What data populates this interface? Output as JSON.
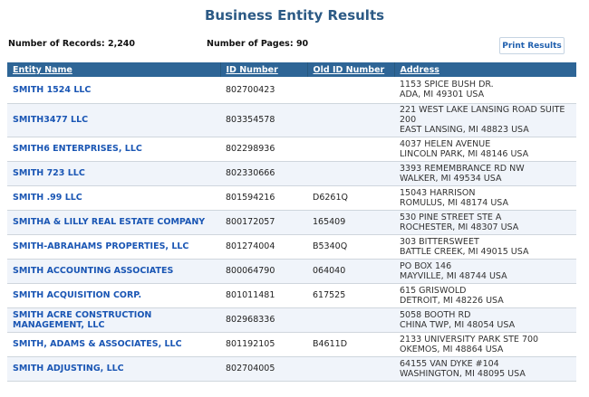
{
  "page": {
    "title": "Business Entity Results"
  },
  "summary": {
    "records_label": "Number of Records: 2,240",
    "pages_label": "Number of Pages: 90",
    "print_label": "Print Results"
  },
  "table": {
    "columns": [
      "Entity Name",
      "ID Number",
      "Old ID Number",
      "Address"
    ],
    "rows": [
      {
        "name": "SMITH 1524 LLC",
        "id": "802700423",
        "old_id": "",
        "address": [
          "1153 SPICE BUSH DR.",
          "ADA, MI 49301 USA"
        ]
      },
      {
        "name": "SMITH3477 LLC",
        "id": "803354578",
        "old_id": "",
        "address": [
          "221 WEST LAKE LANSING ROAD SUITE 200",
          "EAST LANSING, MI 48823 USA"
        ]
      },
      {
        "name": "SMITH6 ENTERPRISES, LLC",
        "id": "802298936",
        "old_id": "",
        "address": [
          "4037 HELEN AVENUE",
          "LINCOLN PARK, MI 48146 USA"
        ]
      },
      {
        "name": "SMITH 723 LLC",
        "id": "802330666",
        "old_id": "",
        "address": [
          "3393 REMEMBRANCE RD NW",
          "WALKER, MI 49534 USA"
        ]
      },
      {
        "name": "SMITH .99 LLC",
        "id": "801594216",
        "old_id": "D6261Q",
        "address": [
          "15043 HARRISON",
          "ROMULUS, MI 48174 USA"
        ]
      },
      {
        "name": "SMITHA & LILLY REAL ESTATE COMPANY",
        "id": "800172057",
        "old_id": "165409",
        "address": [
          "530 PINE STREET STE A",
          "ROCHESTER, MI 48307 USA"
        ]
      },
      {
        "name": "SMITH-ABRAHAMS PROPERTIES, LLC",
        "id": "801274004",
        "old_id": "B5340Q",
        "address": [
          "303 BITTERSWEET",
          "BATTLE CREEK, MI 49015 USA"
        ]
      },
      {
        "name": "SMITH ACCOUNTING ASSOCIATES",
        "id": "800064790",
        "old_id": "064040",
        "address": [
          "PO BOX 146",
          "MAYVILLE, MI 48744 USA"
        ]
      },
      {
        "name": "SMITH ACQUISITION CORP.",
        "id": "801011481",
        "old_id": "617525",
        "address": [
          "615 GRISWOLD",
          "DETROIT, MI 48226 USA"
        ]
      },
      {
        "name": "SMITH ACRE CONSTRUCTION MANAGEMENT, LLC",
        "id": "802968336",
        "old_id": "",
        "address": [
          "5058 BOOTH RD",
          "CHINA TWP, MI 48054 USA"
        ]
      },
      {
        "name": "SMITH, ADAMS & ASSOCIATES, LLC",
        "id": "801192105",
        "old_id": "B4611D",
        "address": [
          "2133 UNIVERSITY PARK STE 700",
          "OKEMOS, MI 48864 USA"
        ]
      },
      {
        "name": "SMITH ADJUSTING, LLC",
        "id": "802704005",
        "old_id": "",
        "address": [
          "64155 VAN DYKE #104",
          "WASHINGTON, MI 48095 USA"
        ]
      }
    ]
  }
}
